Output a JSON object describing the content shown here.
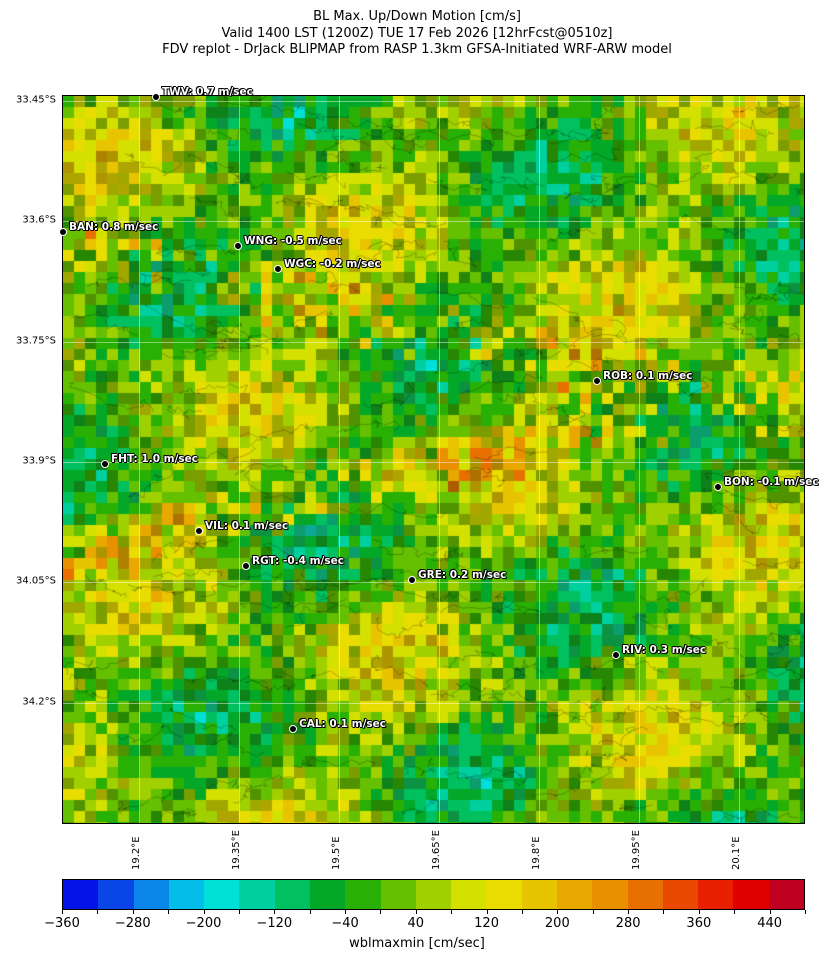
{
  "title": {
    "line1": "BL Max. Up/Down Motion [cm/s]",
    "line2": "Valid 1400 LST (1200Z) TUE 17 Feb 2026 [12hrFcst@0510z]",
    "line3": "FDV replot - DrJack BLIPMAP from RASP 1.3km GFSA-Initiated WRF-ARW model"
  },
  "map": {
    "lat_ticks": [
      "33.45°S",
      "33.6°S",
      "33.75°S",
      "33.9°S",
      "34.05°S",
      "34.2°S"
    ],
    "lon_ticks": [
      "19.2°E",
      "19.35°E",
      "19.5°E",
      "19.65°E",
      "19.8°E",
      "19.95°E",
      "20.1°E"
    ],
    "stations": [
      {
        "label": "TWV: 0.7 m/sec"
      },
      {
        "label": "BAN: 0.8 m/sec"
      },
      {
        "label": "WNG: -0.5 m/sec"
      },
      {
        "label": "WGC: -0.2 m/sec"
      },
      {
        "label": "ROB: 0.1 m/sec"
      },
      {
        "label": "FHT: 1.0 m/sec"
      },
      {
        "label": "BON: -0.1 m/sec"
      },
      {
        "label": "VIL: 0.1 m/sec"
      },
      {
        "label": "RGT: -0.4 m/sec"
      },
      {
        "label": "GRE: 0.2 m/sec"
      },
      {
        "label": "RIV: 0.3 m/sec"
      },
      {
        "label": "CAL: 0.1 m/sec"
      }
    ]
  },
  "colorbar": {
    "label": "wblmaxmin [cm/sec]",
    "min": -360,
    "max": 480,
    "step": 40,
    "tick_labels": [
      "−360",
      "−280",
      "−200",
      "−120",
      "−40",
      "40",
      "120",
      "200",
      "280",
      "360",
      "440"
    ],
    "colors": [
      "#0414e6",
      "#0a45e8",
      "#0a85e8",
      "#04bde8",
      "#00e0d8",
      "#00d0a0",
      "#00c060",
      "#04a828",
      "#28b004",
      "#64c000",
      "#a0d000",
      "#d4e000",
      "#e8dc00",
      "#e8c400",
      "#e8a800",
      "#e89000",
      "#e87000",
      "#e84800",
      "#e82000",
      "#e00000",
      "#c00020"
    ]
  }
}
